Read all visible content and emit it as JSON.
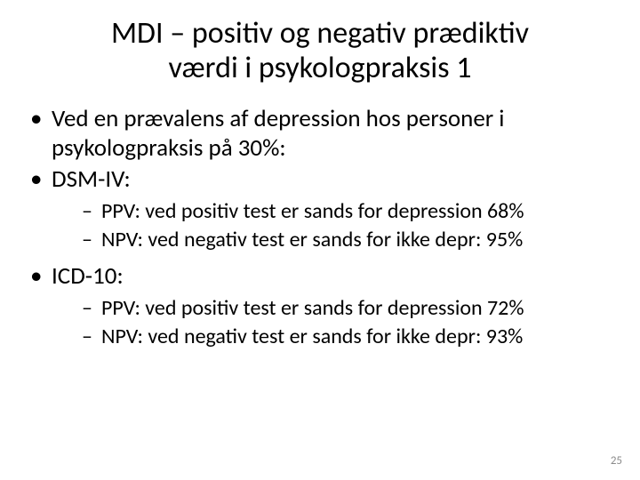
{
  "title": {
    "line1": "MDI – positiv og negativ prædiktiv",
    "line2": "værdi i psykologpraksis 1"
  },
  "bullets": {
    "b1": "Ved en prævalens af depression hos personer i psykologpraksis på 30%:",
    "b2": "DSM-IV:",
    "b2_sub1": "PPV: ved positiv test er sands for depression 68%",
    "b2_sub2": "NPV:  ved negativ test er sands for ikke depr: 95%",
    "b3": "ICD-10:",
    "b3_sub1": "PPV: ved positiv test er sands for depression 72%",
    "b3_sub2": "NPV:  ved negativ test er sands for ikke depr: 93%"
  },
  "page_number": "25",
  "colors": {
    "background": "#ffffff",
    "text": "#000000",
    "page_number": "#8a8a8a"
  },
  "fonts": {
    "title_size_pt": 34,
    "level1_size_pt": 27,
    "level2_size_pt": 24,
    "page_number_size_pt": 13,
    "family": "Calibri"
  }
}
